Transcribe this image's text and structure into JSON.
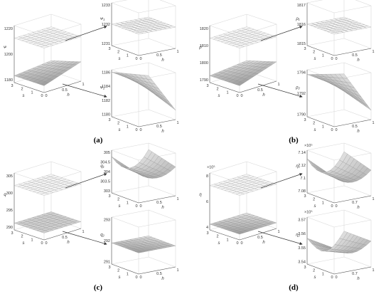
{
  "panels": [
    {
      "caption": "(a)",
      "main": {
        "z_label": "ᴪ",
        "z_ticks": [
          "1220",
          "1200",
          "1180"
        ],
        "s_ticks": [
          "3",
          "2",
          "1",
          "0"
        ],
        "h_ticks": [
          "0",
          "0.5",
          "1"
        ],
        "x_labels": [
          "s",
          "h"
        ],
        "exp": ""
      },
      "upper": {
        "z_label": "ᴪ₁",
        "z_ticks": [
          "1233",
          "1232",
          "1231"
        ],
        "s_ticks": [
          "3",
          "2",
          "1",
          "0"
        ],
        "h_ticks": [
          "0",
          "0.5",
          "1"
        ],
        "x_labels": [
          "s",
          "h"
        ],
        "exp": ""
      },
      "lower": {
        "z_label": "ᴪ₂",
        "z_ticks": [
          "1186",
          "1184",
          "1182",
          "1180"
        ],
        "s_ticks": [
          "3",
          "2",
          "1",
          "0"
        ],
        "h_ticks": [
          "0",
          "0.5",
          "1"
        ],
        "x_labels": [
          "s",
          "h"
        ],
        "exp": ""
      }
    },
    {
      "caption": "(b)",
      "main": {
        "z_label": "ρ",
        "z_ticks": [
          "1820",
          "1810",
          "1800",
          "1790"
        ],
        "s_ticks": [
          "3",
          "2",
          "1",
          "0"
        ],
        "h_ticks": [
          "0",
          "0.5",
          "1"
        ],
        "x_labels": [
          "s",
          "h"
        ],
        "exp": ""
      },
      "upper": {
        "z_label": "ρ₁",
        "z_ticks": [
          "1817",
          "1816",
          "1815"
        ],
        "s_ticks": [
          "3",
          "2",
          "1",
          "0"
        ],
        "h_ticks": [
          "0",
          "0.5",
          "1"
        ],
        "x_labels": [
          "s",
          "h"
        ],
        "exp": ""
      },
      "lower": {
        "z_label": "ρ₂",
        "z_ticks": [
          "1794",
          "1792",
          "1790"
        ],
        "s_ticks": [
          "3",
          "2",
          "1",
          "0"
        ],
        "h_ticks": [
          "0",
          "0.5",
          "1"
        ],
        "x_labels": [
          "s",
          "h"
        ],
        "exp": ""
      }
    },
    {
      "caption": "(c)",
      "main": {
        "z_label": "q",
        "z_ticks": [
          "305",
          "300",
          "295",
          "290"
        ],
        "s_ticks": [
          "3",
          "2",
          "1",
          "0"
        ],
        "h_ticks": [
          "0",
          "0.5",
          "1"
        ],
        "x_labels": [
          "s",
          "h"
        ],
        "exp": ""
      },
      "upper": {
        "z_label": "q₁",
        "z_ticks": [
          "305",
          "304.5",
          "304",
          "303.5",
          "303"
        ],
        "s_ticks": [
          "3",
          "2",
          "1",
          "0"
        ],
        "h_ticks": [
          "0",
          "0.5",
          "1"
        ],
        "x_labels": [
          "s",
          "h"
        ],
        "exp": ""
      },
      "lower": {
        "z_label": "q₂",
        "z_ticks": [
          "293",
          "292",
          "291"
        ],
        "s_ticks": [
          "3",
          "2",
          "1",
          "0"
        ],
        "h_ticks": [
          "0",
          "0.5",
          "1"
        ],
        "x_labels": [
          "s",
          "h"
        ],
        "exp": ""
      }
    },
    {
      "caption": "(d)",
      "main": {
        "z_label": "η",
        "z_ticks": [
          "8",
          "6",
          "4"
        ],
        "s_ticks": [
          "3",
          "2",
          "1",
          "0"
        ],
        "h_ticks": [
          "0",
          "0.5",
          "1"
        ],
        "x_labels": [
          "s",
          "h"
        ],
        "exp": "×10⁵"
      },
      "upper": {
        "z_label": "η₁",
        "z_ticks": [
          "7.14",
          "7.12",
          "7.1",
          "7.08"
        ],
        "s_ticks": [
          "3",
          "2",
          "1",
          "0"
        ],
        "h_ticks": [
          "0",
          "0.7",
          "1"
        ],
        "x_labels": [
          "s",
          "h"
        ],
        "exp": "×10⁵"
      },
      "lower": {
        "z_label": "η₂",
        "z_ticks": [
          "3.57",
          "3.56",
          "3.55",
          "3.54"
        ],
        "s_ticks": [
          "3",
          "2",
          "1",
          "0"
        ],
        "h_ticks": [
          "0",
          "0.7",
          "1"
        ],
        "x_labels": [
          "s",
          "h"
        ],
        "exp": "×10⁵"
      }
    }
  ],
  "colors": {
    "surface_light": "#f4f4f4",
    "surface_mid": "#cfcfcf",
    "surface_dark": "#9a9a9a",
    "grid": "#d8d8d8",
    "axis": "#555555",
    "arrow": "#333333"
  }
}
